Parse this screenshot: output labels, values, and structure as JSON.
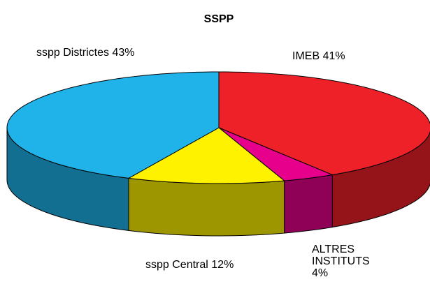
{
  "chart_data": {
    "type": "pie",
    "title": "SSPP",
    "categories": [
      "IMEB",
      "ALTRES INSTITUTS",
      "sspp Central",
      "sspp Districtes"
    ],
    "values": [
      41,
      4,
      12,
      43
    ],
    "value_labels": [
      "41%",
      "4%",
      "12%",
      "43%"
    ],
    "colors": [
      "#ee2028",
      "#e6008c",
      "#fff200",
      "#1fb3ea"
    ]
  }
}
